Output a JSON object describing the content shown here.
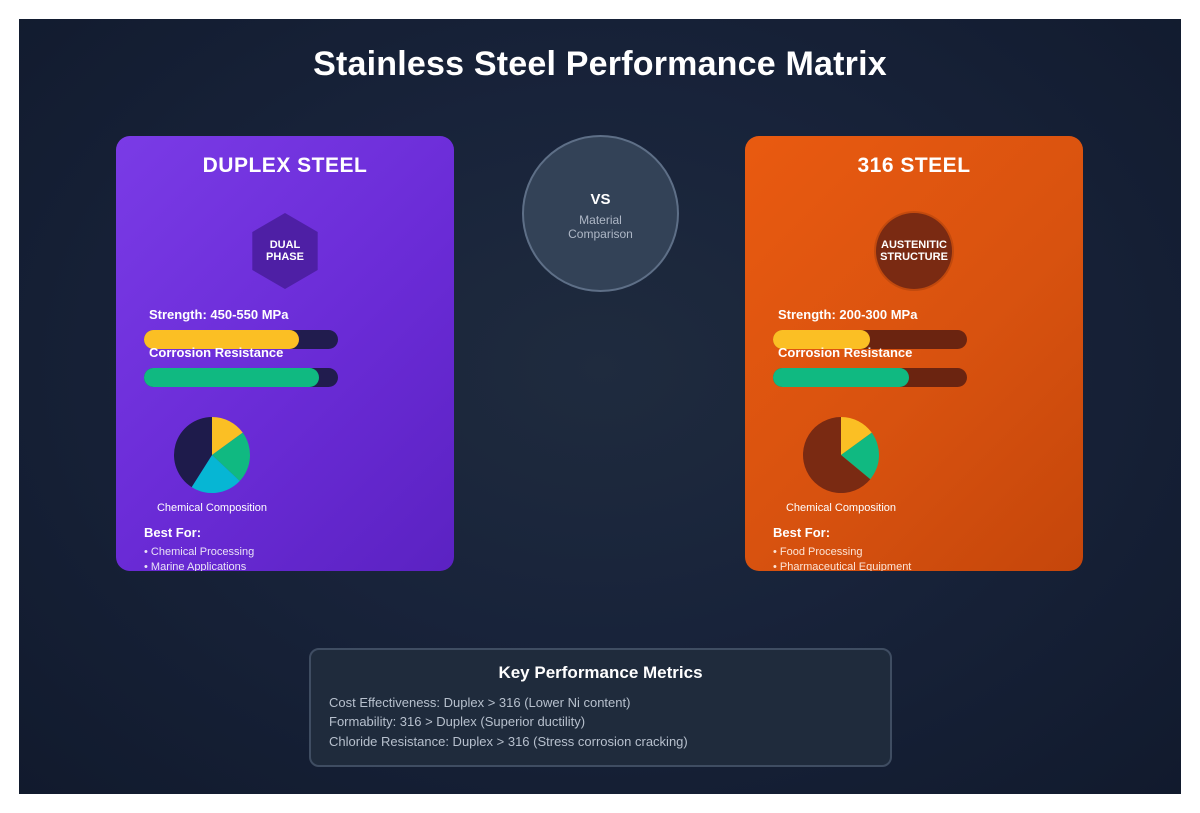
{
  "title": "Stainless Steel Performance Matrix",
  "center": {
    "vs": "VS",
    "subtitle": "Material\nComparison"
  },
  "cards": {
    "duplex": {
      "title": "DUPLEX STEEL",
      "badge": "DUAL\nPHASE",
      "strength_label": "Strength: 450-550 MPa",
      "strength_fraction": 0.8,
      "corrosion_label": "Corrosion Resistance",
      "corrosion_fraction": 0.9,
      "chart_label": "Chemical Composition",
      "best_for_heading": "Best For:",
      "best_for": [
        "• Chemical Processing",
        "• Marine Applications"
      ]
    },
    "s316": {
      "title": "316 STEEL",
      "badge": "AUSTENITIC\nSTRUCTURE",
      "strength_label": "Strength: 200-300 MPa",
      "strength_fraction": 0.5,
      "corrosion_label": "Corrosion Resistance",
      "corrosion_fraction": 0.7,
      "chart_label": "Chemical Composition",
      "best_for_heading": "Best For:",
      "best_for": [
        "• Food Processing",
        "• Pharmaceutical Equipment"
      ]
    }
  },
  "colors": {
    "strength_bar": "#fbbf24",
    "corrosion_bar": "#10b981",
    "duplex_card": "#6d2ed9",
    "s316_card": "#dc550f",
    "pie_yellow": "#fbbf24",
    "pie_green": "#10b981",
    "pie_cyan": "#06b6d4",
    "pie_navy": "#1e1b4b",
    "pie_brown": "#7a2a12"
  },
  "chart_data": [
    {
      "type": "pie",
      "title": "Chemical Composition",
      "values": [
        0.15,
        0.22,
        0.22,
        0.41
      ],
      "colors": [
        "#fbbf24",
        "#10b981",
        "#06b6d4",
        "#1e1b4b"
      ]
    },
    {
      "type": "pie",
      "title": "Chemical Composition",
      "values": [
        0.15,
        0.21,
        0.64
      ],
      "colors": [
        "#fbbf24",
        "#10b981",
        "#7a2a12"
      ]
    }
  ],
  "metrics": {
    "title": "Key Performance Metrics",
    "lines": [
      "Cost Effectiveness: Duplex > 316 (Lower Ni content)",
      "Formability: 316 > Duplex (Superior ductility)",
      "Chloride Resistance: Duplex > 316 (Stress corrosion cracking)"
    ]
  }
}
